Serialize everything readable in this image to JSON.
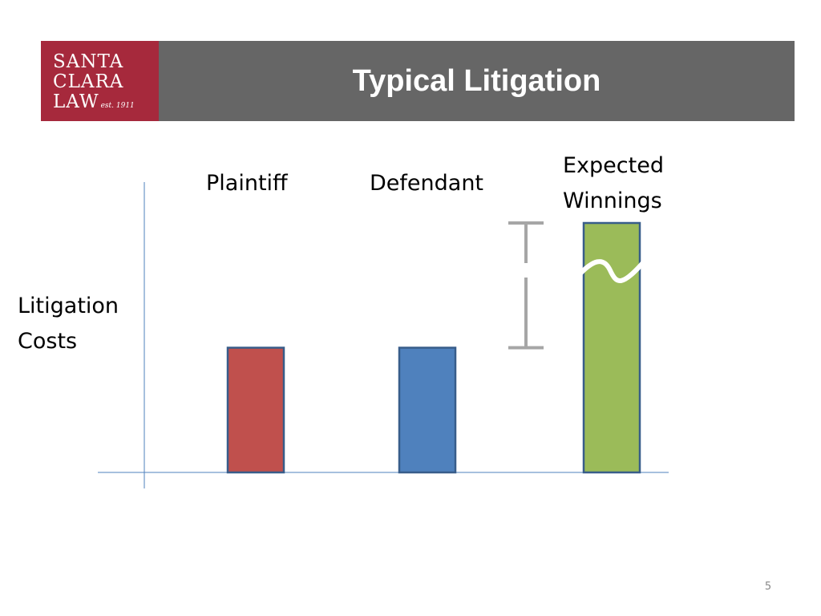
{
  "header": {
    "title": "Typical Litigation",
    "background_color": "#666666",
    "logo": {
      "line1": "SANTA",
      "line2": "CLARA",
      "line3": "LAW",
      "est": "est. 1911",
      "color": "#a6293c"
    }
  },
  "chart_data": {
    "type": "bar",
    "title": "",
    "xlabel": "",
    "ylabel_line1": "Litigation",
    "ylabel_line2": "Costs",
    "categories": [
      "Plaintiff",
      "Defendant",
      "Expected Winnings"
    ],
    "category_labels": {
      "plaintiff": "Plaintiff",
      "defendant": "Defendant",
      "winnings_line1": "Expected",
      "winnings_line2": "Winnings"
    },
    "values": [
      1,
      1,
      2
    ],
    "colors": [
      "#c0504d",
      "#4f81bd",
      "#9bbb59"
    ],
    "ylim": [
      0,
      2
    ],
    "grid": false,
    "axis_break_on": "Expected Winnings",
    "error_bar": {
      "low": 1,
      "high": 2
    }
  },
  "footer": {
    "page_number": "5"
  }
}
